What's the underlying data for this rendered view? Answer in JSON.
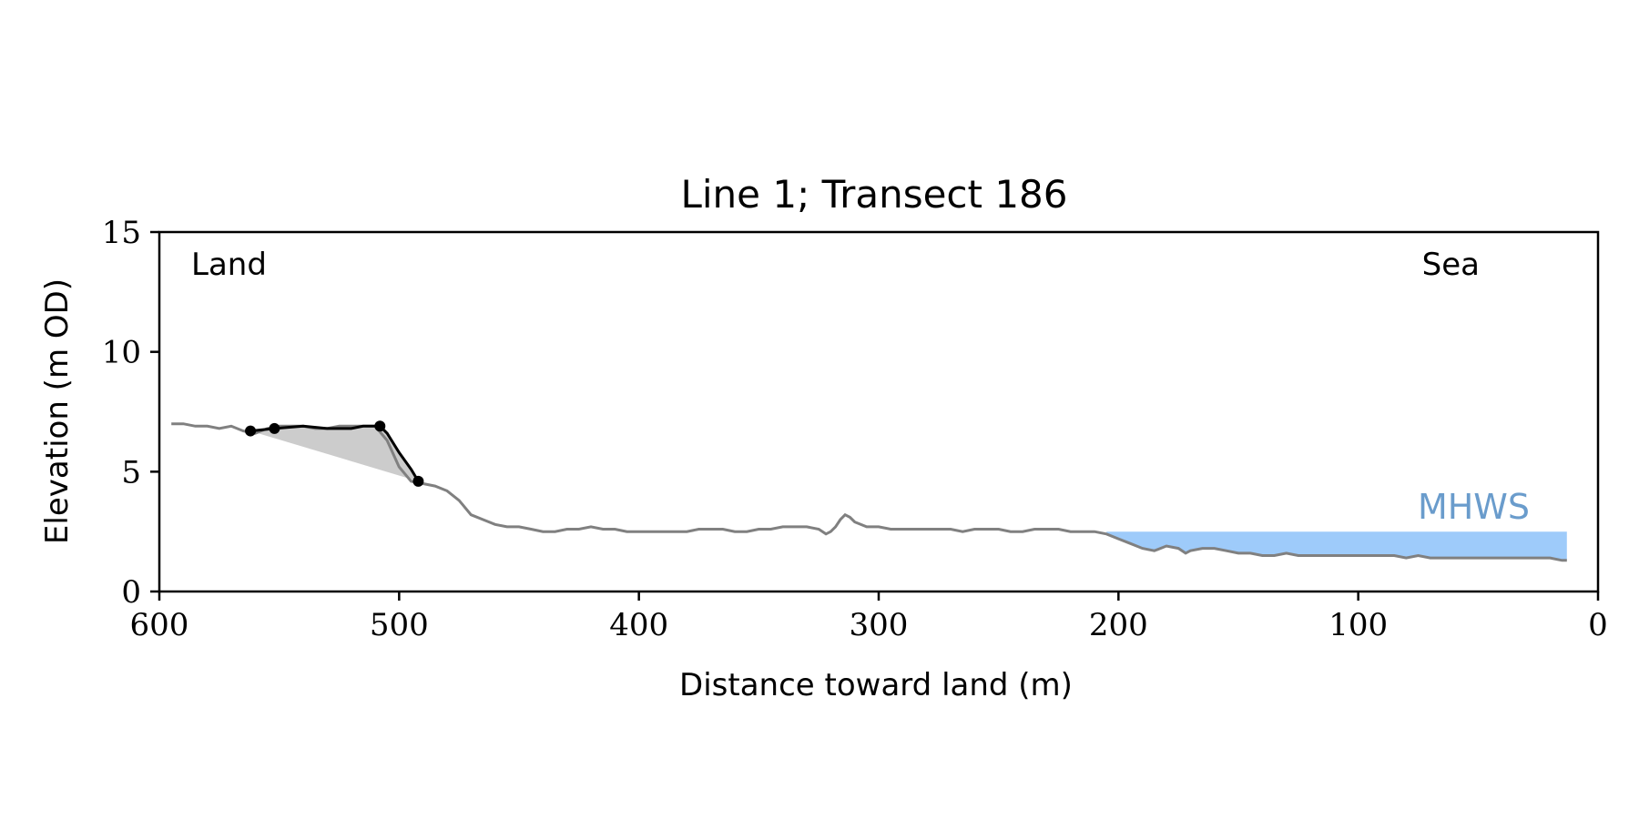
{
  "chart_data": {
    "type": "line",
    "title": "Line 1; Transect 186",
    "xlabel": "Distance toward land (m)",
    "ylabel": "Elevation (m OD)",
    "xlim": [
      600,
      0
    ],
    "ylim": [
      0,
      15
    ],
    "x_reversed": true,
    "xticks": [
      600,
      500,
      400,
      300,
      200,
      100,
      0
    ],
    "yticks": [
      0,
      5,
      10,
      15
    ],
    "grid": false,
    "annotations": {
      "land": "Land",
      "sea": "Sea",
      "mhws": "MHWS"
    },
    "mhws_level": 2.5,
    "mhws_x_range": [
      205,
      13
    ],
    "colors": {
      "profile": "#808080",
      "feature": "#000000",
      "fill": "#cccccc",
      "mhws": "#9ecbfa",
      "mhws_text": "#6a9ccc"
    },
    "series": [
      {
        "role": "profile",
        "x": [
          595,
          590,
          585,
          580,
          575,
          570,
          565,
          560,
          555,
          550,
          545,
          540,
          535,
          530,
          525,
          520,
          515,
          510,
          505,
          500,
          495,
          490,
          485,
          480,
          475,
          470,
          465,
          460,
          455,
          450,
          445,
          440,
          435,
          430,
          425,
          420,
          415,
          410,
          405,
          400,
          395,
          390,
          385,
          380,
          375,
          370,
          365,
          360,
          355,
          350,
          345,
          340,
          335,
          330,
          325,
          322,
          320,
          318,
          316,
          314,
          312,
          310,
          305,
          300,
          295,
          290,
          285,
          280,
          275,
          270,
          265,
          260,
          255,
          250,
          245,
          240,
          235,
          230,
          225,
          220,
          215,
          210,
          205,
          200,
          195,
          190,
          185,
          180,
          175,
          172,
          170,
          165,
          160,
          155,
          150,
          145,
          140,
          135,
          130,
          125,
          120,
          115,
          110,
          105,
          100,
          95,
          90,
          85,
          80,
          75,
          70,
          65,
          60,
          55,
          50,
          45,
          40,
          35,
          30,
          25,
          20,
          15,
          13
        ],
        "y": [
          7.0,
          7.0,
          6.9,
          6.9,
          6.8,
          6.9,
          6.7,
          6.6,
          6.8,
          6.9,
          6.9,
          6.9,
          6.8,
          6.8,
          6.9,
          6.9,
          6.9,
          6.9,
          6.3,
          5.2,
          4.6,
          4.5,
          4.4,
          4.2,
          3.8,
          3.2,
          3.0,
          2.8,
          2.7,
          2.7,
          2.6,
          2.5,
          2.5,
          2.6,
          2.6,
          2.7,
          2.6,
          2.6,
          2.5,
          2.5,
          2.5,
          2.5,
          2.5,
          2.5,
          2.6,
          2.6,
          2.6,
          2.5,
          2.5,
          2.6,
          2.6,
          2.7,
          2.7,
          2.7,
          2.6,
          2.4,
          2.5,
          2.7,
          3.0,
          3.2,
          3.1,
          2.9,
          2.7,
          2.7,
          2.6,
          2.6,
          2.6,
          2.6,
          2.6,
          2.6,
          2.5,
          2.6,
          2.6,
          2.6,
          2.5,
          2.5,
          2.6,
          2.6,
          2.6,
          2.5,
          2.5,
          2.5,
          2.4,
          2.2,
          2.0,
          1.8,
          1.7,
          1.9,
          1.8,
          1.6,
          1.7,
          1.8,
          1.8,
          1.7,
          1.6,
          1.6,
          1.5,
          1.5,
          1.6,
          1.5,
          1.5,
          1.5,
          1.5,
          1.5,
          1.5,
          1.5,
          1.5,
          1.5,
          1.4,
          1.5,
          1.4,
          1.4,
          1.4,
          1.4,
          1.4,
          1.4,
          1.4,
          1.4,
          1.4,
          1.4,
          1.4,
          1.3,
          1.3
        ]
      },
      {
        "role": "feature",
        "x": [
          562,
          552,
          540,
          530,
          520,
          515,
          508,
          505,
          500,
          495,
          492
        ],
        "y": [
          6.7,
          6.8,
          6.9,
          6.8,
          6.8,
          6.9,
          6.9,
          6.6,
          5.8,
          5.1,
          4.6
        ]
      },
      {
        "role": "feature_points",
        "x": [
          562,
          552,
          508,
          492
        ],
        "y": [
          6.7,
          6.8,
          6.9,
          4.6
        ]
      }
    ]
  }
}
